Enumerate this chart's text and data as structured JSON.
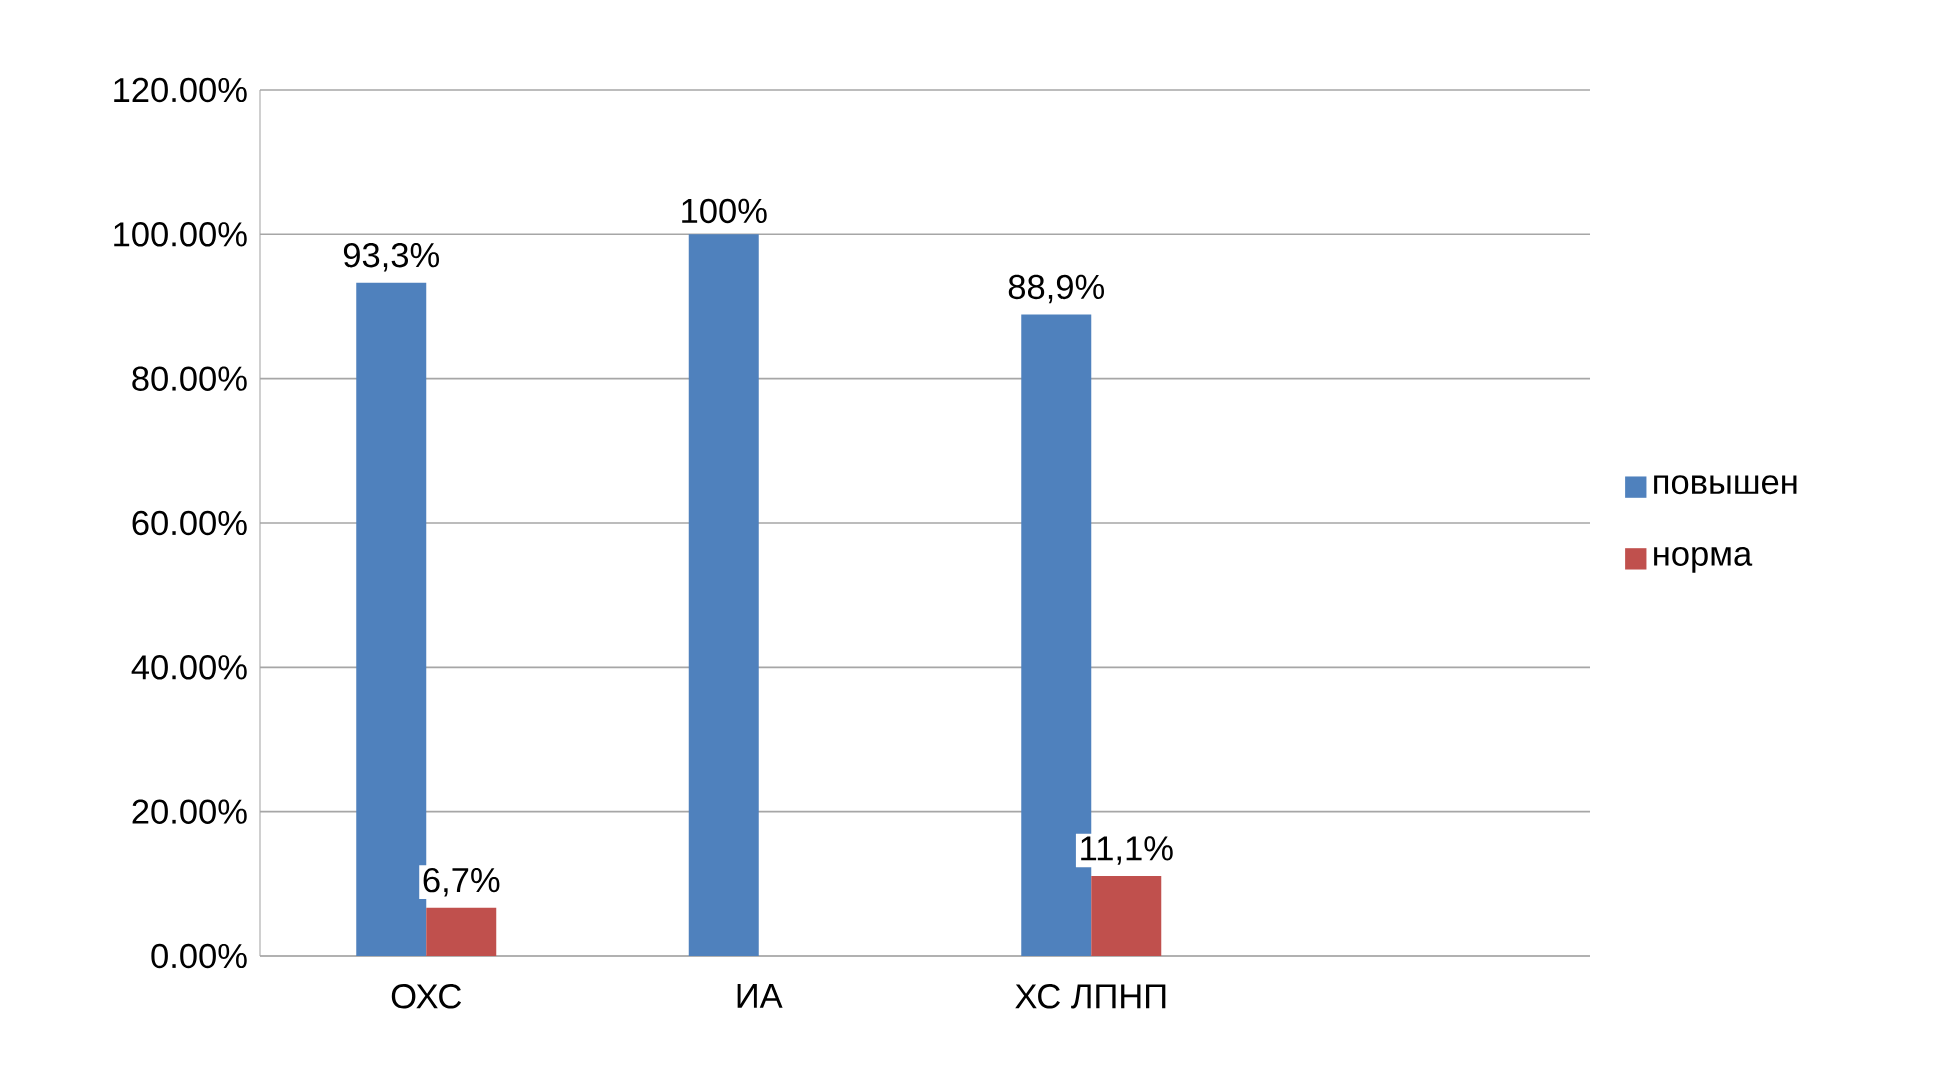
{
  "chart_data": {
    "type": "bar",
    "categories": [
      "ОХС",
      "ИА",
      "ХС ЛПНП",
      null
    ],
    "series": [
      {
        "name": "повышен",
        "color": "#4f81bd",
        "values": [
          93.3,
          100,
          88.9,
          null
        ],
        "value_labels": [
          "93,3%",
          "100%",
          "88,9%",
          null
        ]
      },
      {
        "name": "норма",
        "color": "#c0504d",
        "values": [
          6.7,
          null,
          11.1,
          null
        ],
        "value_labels": [
          "6,7%",
          null,
          "11,1%",
          null
        ]
      }
    ],
    "ylim": [
      0,
      120
    ],
    "yticks": [
      {
        "value": 0,
        "label": "0.00%"
      },
      {
        "value": 20,
        "label": "20.00%"
      },
      {
        "value": 40,
        "label": "40.00%"
      },
      {
        "value": 60,
        "label": "60.00%"
      },
      {
        "value": 80,
        "label": "80.00%"
      },
      {
        "value": 100,
        "label": "100.00%"
      },
      {
        "value": 120,
        "label": "120.00%"
      }
    ],
    "grid": "y",
    "legend": "right"
  }
}
